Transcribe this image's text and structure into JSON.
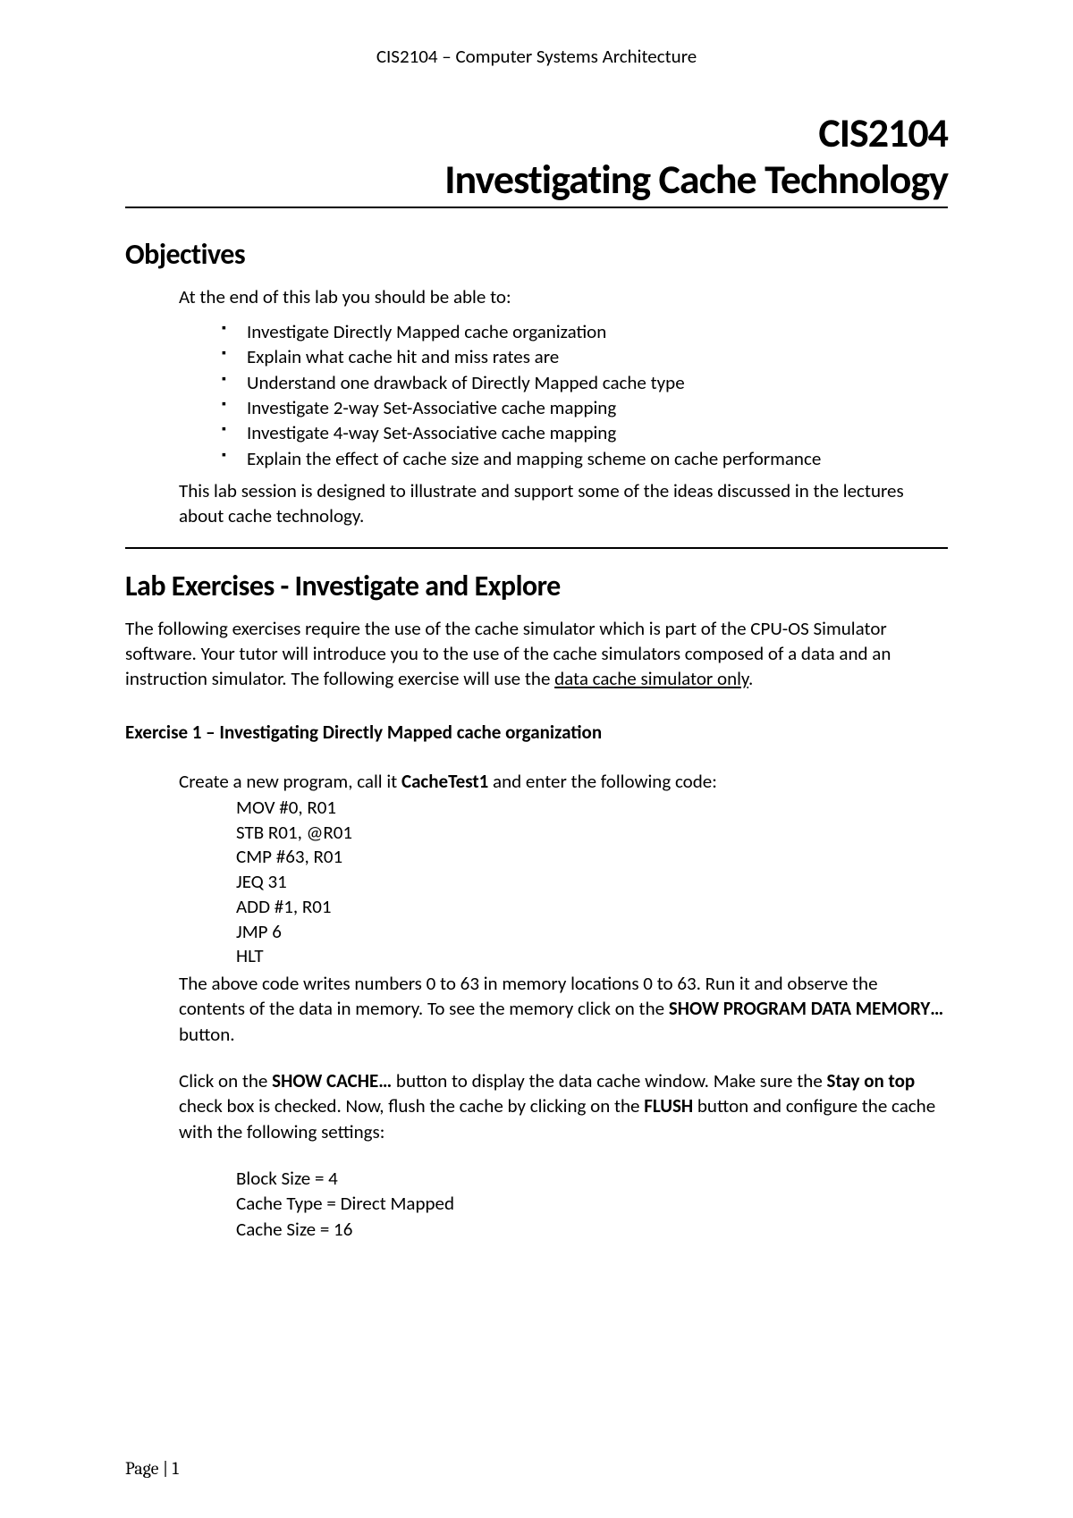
{
  "header": {
    "course": "CIS2104 – Computer Systems Architecture"
  },
  "title": {
    "code": "CIS2104",
    "main": "Investigating Cache Technology"
  },
  "objectives": {
    "heading": "Objectives",
    "intro": "At the end of this lab you should be able to:",
    "items": [
      "Investigate Directly Mapped cache organization",
      "Explain what cache hit and miss rates are",
      "Understand one drawback of Directly Mapped cache type",
      "Investigate 2-way Set-Associative cache mapping",
      "Investigate 4-way Set-Associative cache mapping",
      "Explain the effect of cache size and mapping scheme on cache performance"
    ],
    "outro": "This lab session is designed to illustrate and support some of the ideas discussed in the lectures about cache technology."
  },
  "lab": {
    "heading": "Lab Exercises - Investigate and Explore",
    "intro_pre": "The following exercises require the use of the cache simulator which is part of the CPU-OS Simulator software. Your tutor will introduce you to the use of the cache simulators composed of a data and an instruction simulator. The following exercise will use the ",
    "intro_underlined": "data cache simulator only",
    "intro_post": "."
  },
  "exercise1": {
    "title": "Exercise 1 – Investigating Directly Mapped cache organization",
    "create_pre": "Create a new program, call it ",
    "create_bold": "CacheTest1",
    "create_post": " and enter the following code:",
    "code": [
      "MOV #0, R01",
      "STB R01, @R01",
      "CMP #63, R01",
      "JEQ 31",
      "ADD #1, R01",
      "JMP 6",
      "HLT"
    ],
    "para2_pre": "The above code writes numbers 0 to 63 in memory locations 0 to 63. Run it and observe the contents of the data in memory. To see the memory click on the ",
    "para2_bold": "SHOW PROGRAM DATA MEMORY…",
    "para2_post": " button.",
    "para3_seg1": "Click on the ",
    "para3_b1": "SHOW CACHE…",
    "para3_seg2": " button to display the data cache window. Make sure the ",
    "para3_b2": "Stay on top",
    "para3_seg3": " check box is checked. Now, flush the cache by clicking on the ",
    "para3_b3": "FLUSH",
    "para3_seg4": " button and configure the cache with the following settings:",
    "settings": [
      "Block Size = 4",
      "Cache Type = Direct Mapped",
      "Cache Size = 16"
    ]
  },
  "footer": {
    "page_label": "Page | 1"
  }
}
